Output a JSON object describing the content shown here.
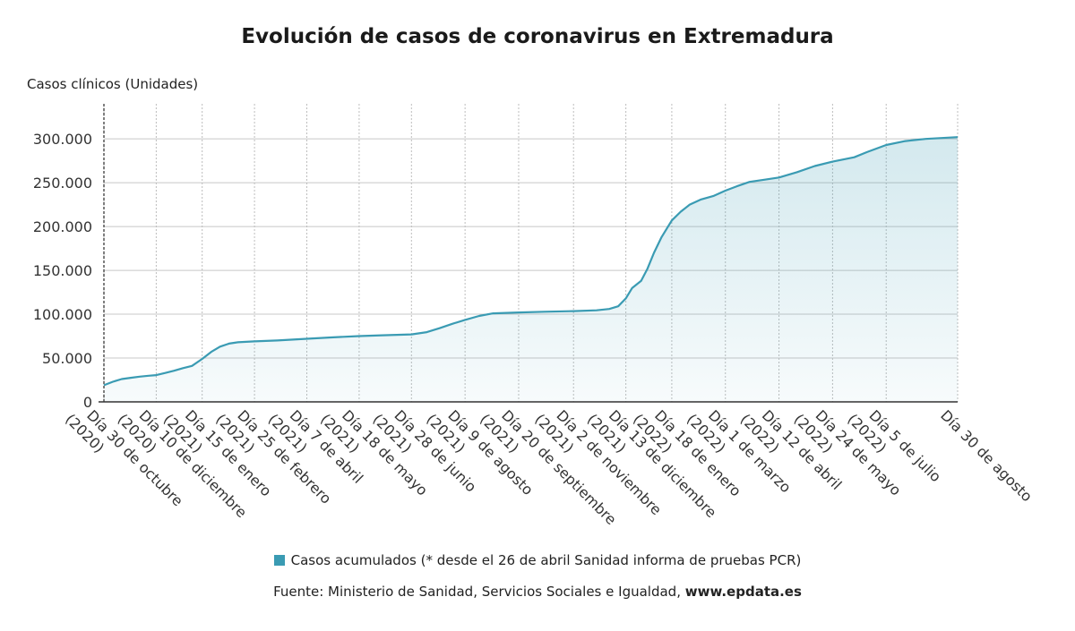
{
  "title": "Evolución de casos de coronavirus en Extremadura",
  "chart_data": {
    "type": "area",
    "title": "Evolución de casos de coronavirus en Extremadura",
    "ylabel": "Casos clínicos (Unidades)",
    "xlabel": "",
    "ylim": [
      0,
      340000
    ],
    "yticks": [
      {
        "value": 50000,
        "label": "50.000"
      },
      {
        "value": 100000,
        "label": "100.000"
      },
      {
        "value": 150000,
        "label": "150.000"
      },
      {
        "value": 200000,
        "label": "200.000"
      },
      {
        "value": 250000,
        "label": "250.000"
      },
      {
        "value": 300000,
        "label": "300.000"
      }
    ],
    "ytick_zero_label": "0",
    "xticks": [
      {
        "date": "2020-10-30",
        "label": "Día 30 de octubre\n(2020)"
      },
      {
        "date": "2020-12-10",
        "label": "Día 10 de diciembre\n(2020)"
      },
      {
        "date": "2021-01-15",
        "label": "Día 15 de enero\n(2021)"
      },
      {
        "date": "2021-02-25",
        "label": "Día 25 de febrero\n(2021)"
      },
      {
        "date": "2021-04-07",
        "label": "Día 7 de abril\n(2021)"
      },
      {
        "date": "2021-05-18",
        "label": "Día 18 de mayo\n(2021)"
      },
      {
        "date": "2021-06-28",
        "label": "Día 28 de junio\n(2021)"
      },
      {
        "date": "2021-08-09",
        "label": "Día 9 de agosto\n(2021)"
      },
      {
        "date": "2021-09-20",
        "label": "Día 20 de septiembre\n(2021)"
      },
      {
        "date": "2021-11-02",
        "label": "Día 2 de noviembre\n(2021)"
      },
      {
        "date": "2021-12-13",
        "label": "Día 13 de diciembre\n(2021)"
      },
      {
        "date": "2022-01-18",
        "label": "Día 18 de enero\n(2022)"
      },
      {
        "date": "2022-03-01",
        "label": "Día 1 de marzo\n(2022)"
      },
      {
        "date": "2022-04-12",
        "label": "Día 12 de abril\n(2022)"
      },
      {
        "date": "2022-05-24",
        "label": "Día 24 de mayo\n(2022)"
      },
      {
        "date": "2022-07-05",
        "label": "Día 5 de julio\n(2022)"
      },
      {
        "date": "2022-08-30",
        "label": "Día 30 de agosto"
      }
    ],
    "grid": true,
    "legend_position": "bottom",
    "series": [
      {
        "name": "Casos acumulados (* desde el 26 de abril Sanidad informa de pruebas PCR)",
        "color": "#3a9bb3",
        "points": [
          [
            "2020-10-30",
            19000
          ],
          [
            "2020-11-06",
            23000
          ],
          [
            "2020-11-13",
            26000
          ],
          [
            "2020-11-20",
            27500
          ],
          [
            "2020-11-27",
            28800
          ],
          [
            "2020-12-04",
            29800
          ],
          [
            "2020-12-10",
            30500
          ],
          [
            "2020-12-17",
            33000
          ],
          [
            "2020-12-24",
            35500
          ],
          [
            "2020-12-31",
            38500
          ],
          [
            "2021-01-07",
            41000
          ],
          [
            "2021-01-15",
            49000
          ],
          [
            "2021-01-22",
            57000
          ],
          [
            "2021-01-29",
            63000
          ],
          [
            "2021-02-05",
            66500
          ],
          [
            "2021-02-12",
            68000
          ],
          [
            "2021-02-25",
            69000
          ],
          [
            "2021-03-15",
            70000
          ],
          [
            "2021-04-07",
            72000
          ],
          [
            "2021-04-26",
            73500
          ],
          [
            "2021-05-18",
            75000
          ],
          [
            "2021-06-05",
            76000
          ],
          [
            "2021-06-28",
            77000
          ],
          [
            "2021-07-10",
            79500
          ],
          [
            "2021-07-20",
            84000
          ],
          [
            "2021-07-30",
            89000
          ],
          [
            "2021-08-09",
            93500
          ],
          [
            "2021-08-20",
            98000
          ],
          [
            "2021-08-31",
            101000
          ],
          [
            "2021-09-20",
            102000
          ],
          [
            "2021-10-10",
            102800
          ],
          [
            "2021-11-02",
            103500
          ],
          [
            "2021-11-20",
            104500
          ],
          [
            "2021-11-30",
            106000
          ],
          [
            "2021-12-07",
            109000
          ],
          [
            "2021-12-13",
            118000
          ],
          [
            "2021-12-18",
            130000
          ],
          [
            "2021-12-25",
            138000
          ],
          [
            "2021-12-30",
            152000
          ],
          [
            "2022-01-04",
            170000
          ],
          [
            "2022-01-10",
            188000
          ],
          [
            "2022-01-18",
            207000
          ],
          [
            "2022-01-25",
            217000
          ],
          [
            "2022-02-01",
            225000
          ],
          [
            "2022-02-10",
            231000
          ],
          [
            "2022-02-20",
            235000
          ],
          [
            "2022-03-01",
            241000
          ],
          [
            "2022-03-10",
            246000
          ],
          [
            "2022-03-20",
            251000
          ],
          [
            "2022-04-01",
            253500
          ],
          [
            "2022-04-12",
            256000
          ],
          [
            "2022-04-26",
            262000
          ],
          [
            "2022-05-10",
            269000
          ],
          [
            "2022-05-24",
            274000
          ],
          [
            "2022-06-10",
            279000
          ],
          [
            "2022-06-20",
            285000
          ],
          [
            "2022-07-05",
            293000
          ],
          [
            "2022-07-20",
            297500
          ],
          [
            "2022-08-05",
            300000
          ],
          [
            "2022-08-30",
            302000
          ]
        ]
      }
    ]
  },
  "legend": {
    "label": "Casos acumulados (* desde el 26 de abril Sanidad informa de pruebas PCR)",
    "color": "#3a9bb3"
  },
  "source": {
    "prefix": "Fuente: Ministerio de Sanidad, Servicios Sociales e Igualdad, ",
    "site": "www.epdata.es"
  }
}
